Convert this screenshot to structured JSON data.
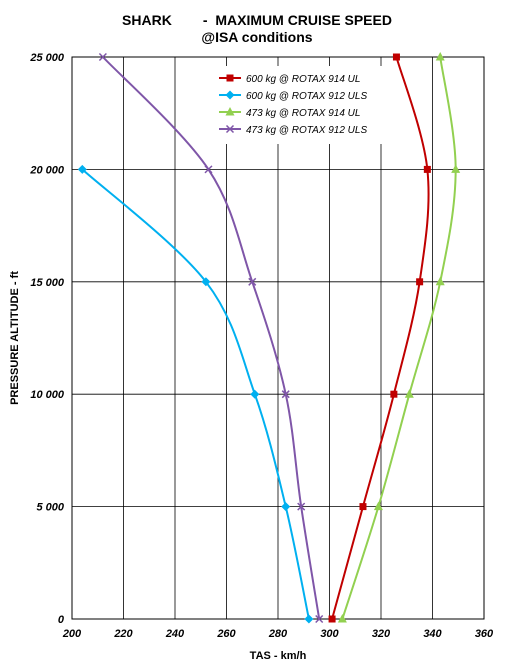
{
  "chart_data": {
    "type": "line",
    "title": "SHARK        -  MAXIMUM CRUISE SPEED",
    "subtitle": "@ISA conditions",
    "xlabel": "TAS - km/h",
    "ylabel": "PRESSURE ALTITUDE  - ft",
    "xlim": [
      200,
      360
    ],
    "ylim": [
      0,
      25000
    ],
    "x_ticks": [
      "200",
      "220",
      "240",
      "260",
      "280",
      "300",
      "320",
      "340",
      "360"
    ],
    "y_ticks": [
      "0",
      "5 000",
      "10 000",
      "15 000",
      "20 000",
      "25 000"
    ],
    "grid": true,
    "legend_position": "top-center",
    "series": [
      {
        "name": "600 kg @ ROTAX 914 UL",
        "color": "#c00000",
        "marker": "square",
        "points": [
          [
            301,
            0
          ],
          [
            313,
            5000
          ],
          [
            325,
            10000
          ],
          [
            335,
            15000
          ],
          [
            338,
            20000
          ],
          [
            326,
            25000
          ]
        ]
      },
      {
        "name": "600 kg @ ROTAX 912 ULS",
        "color": "#00b0f0",
        "marker": "diamond",
        "points": [
          [
            292,
            0
          ],
          [
            283,
            5000
          ],
          [
            271,
            10000
          ],
          [
            252,
            15000
          ],
          [
            204,
            20000
          ]
        ]
      },
      {
        "name": "473 kg @ ROTAX 914 UL",
        "color": "#92d050",
        "marker": "triangle",
        "points": [
          [
            305,
            0
          ],
          [
            319,
            5000
          ],
          [
            331,
            10000
          ],
          [
            343,
            15000
          ],
          [
            349,
            20000
          ],
          [
            343,
            25000
          ]
        ]
      },
      {
        "name": "473 kg @ ROTAX 912 ULS",
        "color": "#7f56a8",
        "marker": "x",
        "points": [
          [
            296,
            0
          ],
          [
            289,
            5000
          ],
          [
            283,
            10000
          ],
          [
            270,
            15000
          ],
          [
            253,
            20000
          ],
          [
            212,
            25000
          ]
        ]
      }
    ]
  }
}
